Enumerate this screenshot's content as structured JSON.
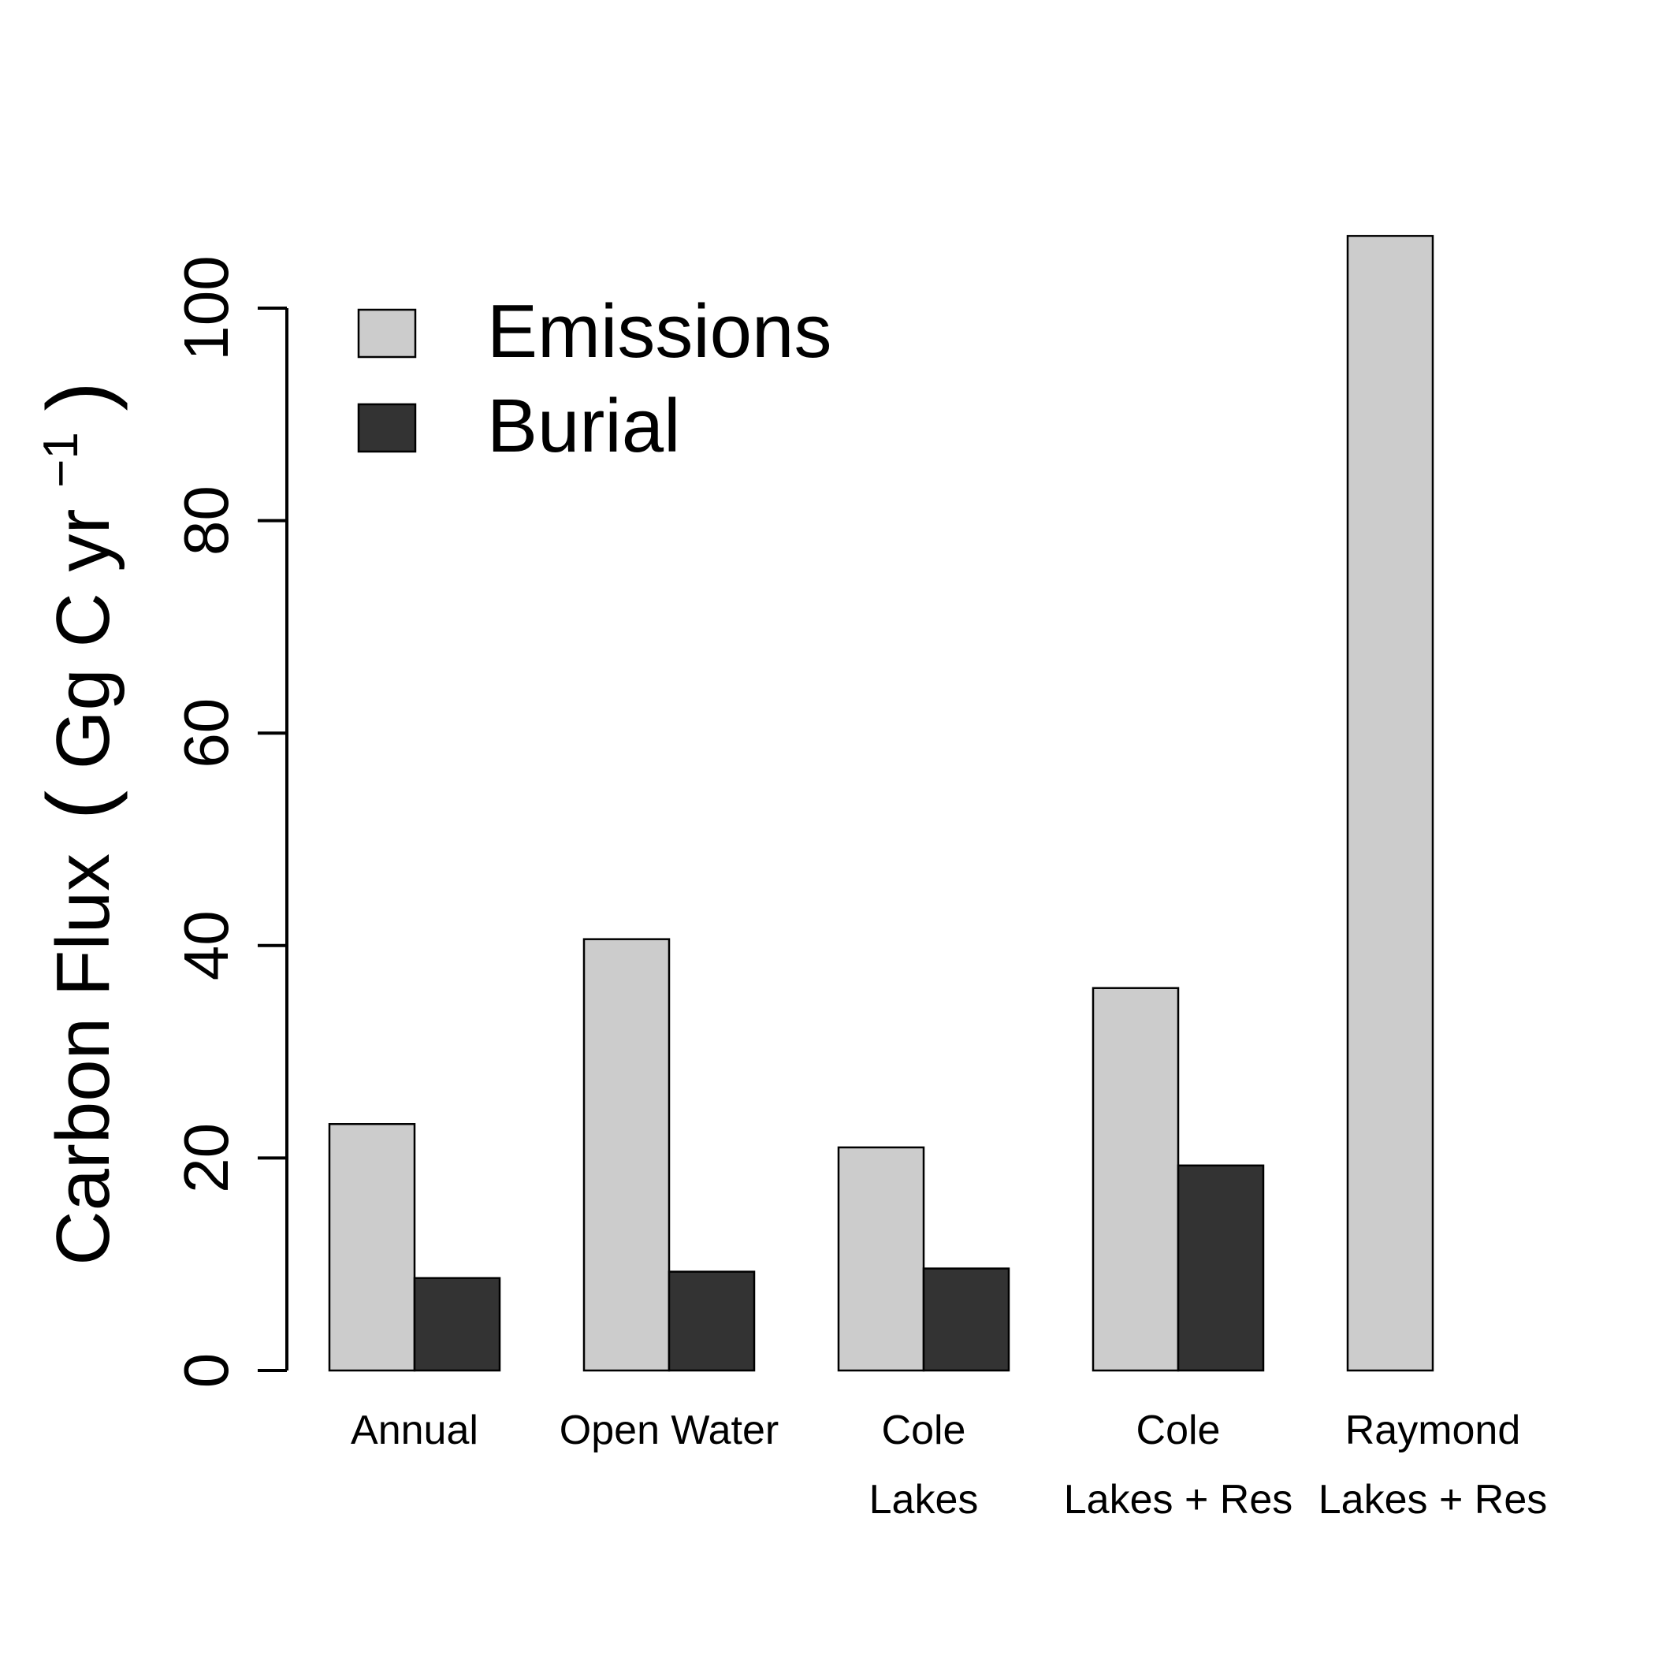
{
  "chart_data": {
    "type": "bar",
    "categories": [
      [
        "Annual"
      ],
      [
        "Open Water"
      ],
      [
        "Cole",
        "Lakes"
      ],
      [
        "Cole",
        "Lakes + Res"
      ],
      [
        "Raymond",
        "Lakes + Res"
      ]
    ],
    "series": [
      {
        "name": "Emissions",
        "values": [
          23.2,
          40.6,
          21.0,
          36.0,
          106.8
        ],
        "color": "#cccccc"
      },
      {
        "name": "Burial",
        "values": [
          8.7,
          9.3,
          9.6,
          19.3,
          null
        ],
        "color": "#333333"
      }
    ],
    "ylabel": {
      "main": "Carbon Flux",
      "units_open": "(",
      "units_body": "Gg C yr",
      "units_exp": "−1",
      "units_close": ")"
    },
    "yticks": [
      "0",
      "20",
      "40",
      "60",
      "80",
      "100"
    ],
    "ylim": [
      0,
      110
    ],
    "legend_position": "top-left",
    "grid": false
  }
}
